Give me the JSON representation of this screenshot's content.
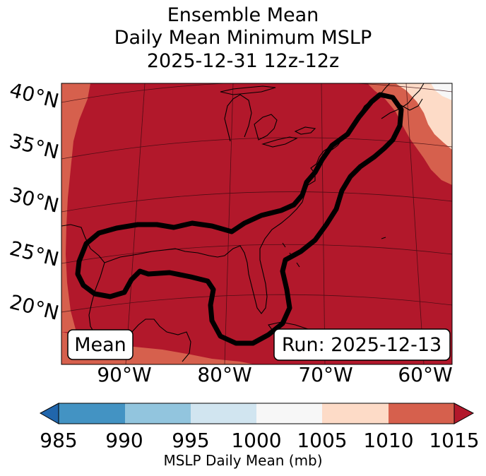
{
  "title": {
    "line1": "Ensemble Mean",
    "line2": "Daily Mean Minimum MSLP",
    "line3": "2025-12-31 12z-12z"
  },
  "map": {
    "lat_labels": [
      "40°N",
      "35°N",
      "30°N",
      "25°N",
      "20°N"
    ],
    "lon_labels": [
      "90°W",
      "80°W",
      "70°W",
      "60°W"
    ],
    "left_box": "Mean",
    "right_box": "Run: 2025-12-13",
    "field_colors": {
      "1015+": "#b2182b",
      "1010-1015": "#d6604d",
      "1005-1010": "#fddbc7",
      "1000-1005": "#f7f7f7"
    },
    "coast_color": "#000000",
    "contour_color": "#000000"
  },
  "colorbar": {
    "ticks": [
      "985",
      "990",
      "995",
      "1000",
      "1005",
      "1010",
      "1015"
    ],
    "label": "MSLP Daily Mean (mb)",
    "colors": [
      "#2166ac",
      "#4393c3",
      "#92c5de",
      "#d1e5f0",
      "#f7f7f7",
      "#fddbc7",
      "#d6604d",
      "#b2182b"
    ]
  }
}
